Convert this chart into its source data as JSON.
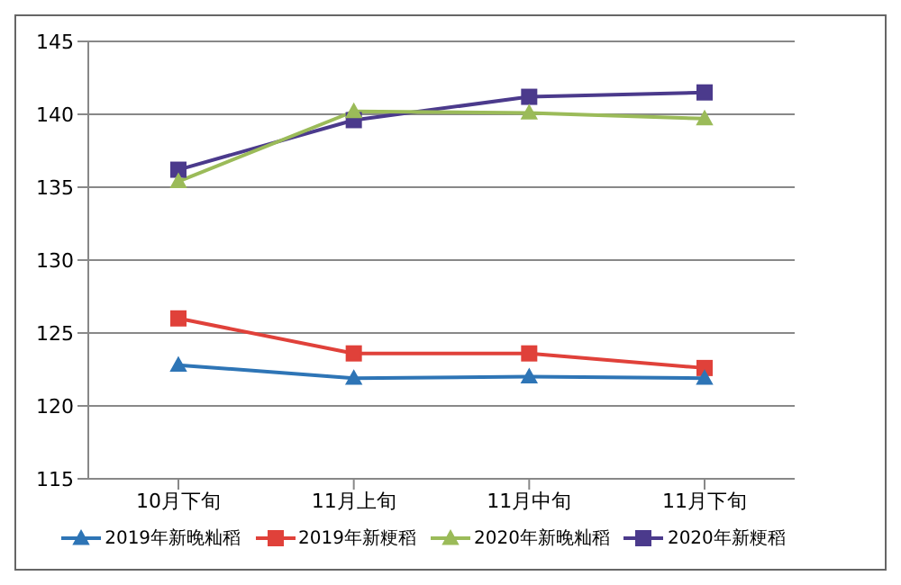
{
  "chart_data": {
    "type": "line",
    "categories": [
      "10月下旬",
      "11月上旬",
      "11月中旬",
      "11月下旬"
    ],
    "series": [
      {
        "name": "2019年新晚籼稻",
        "color": "#2e75b6",
        "marker": "triangle",
        "values": [
          122.8,
          121.9,
          122.0,
          121.9
        ]
      },
      {
        "name": "2019年新粳稻",
        "color": "#e0413a",
        "marker": "square",
        "values": [
          126.0,
          123.6,
          123.6,
          122.6
        ]
      },
      {
        "name": "2020年新晚籼稻",
        "color": "#9bbb59",
        "marker": "triangle",
        "values": [
          135.4,
          140.2,
          140.1,
          139.7
        ]
      },
      {
        "name": "2020年新粳稻",
        "color": "#4b3a8c",
        "marker": "square",
        "values": [
          136.2,
          139.6,
          141.2,
          141.5
        ]
      }
    ],
    "ylim": [
      115,
      145
    ],
    "yticks": [
      115,
      120,
      125,
      130,
      135,
      140,
      145
    ],
    "grid": "y",
    "legend": "bottom"
  }
}
